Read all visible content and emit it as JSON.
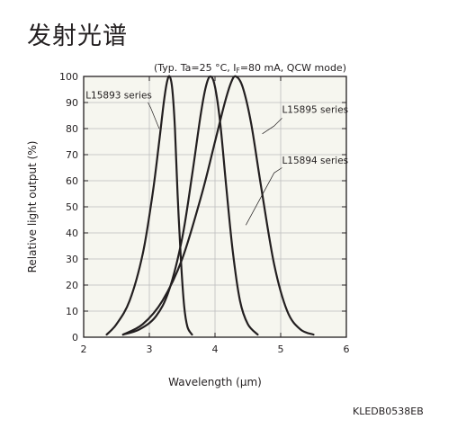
{
  "page": {
    "title": "发射光谱",
    "figure_code": "KLEDB0538EB"
  },
  "chart_data": {
    "type": "line",
    "subtitle": "(Typ. Ta=25 °C, IF=80 mA, QCW mode)",
    "subtitle_parts": {
      "pre": "(Typ. Ta=25 °C, I",
      "sub": "F",
      "post": "=80 mA, QCW mode)"
    },
    "xlabel": "Wavelength (μm)",
    "ylabel": "Relative light output (%)",
    "xlim": [
      2,
      6
    ],
    "ylim": [
      0,
      100
    ],
    "xticks": [
      2,
      3,
      4,
      5,
      6
    ],
    "yticks": [
      0,
      10,
      20,
      30,
      40,
      50,
      60,
      70,
      80,
      90,
      100
    ],
    "grid": true,
    "series": [
      {
        "name": "L15893 series",
        "points": [
          [
            2.35,
            1
          ],
          [
            2.5,
            5
          ],
          [
            2.7,
            14
          ],
          [
            2.9,
            32
          ],
          [
            3.05,
            55
          ],
          [
            3.15,
            75
          ],
          [
            3.22,
            90
          ],
          [
            3.27,
            98
          ],
          [
            3.31,
            100
          ],
          [
            3.35,
            95
          ],
          [
            3.39,
            80
          ],
          [
            3.43,
            55
          ],
          [
            3.48,
            30
          ],
          [
            3.53,
            12
          ],
          [
            3.58,
            4
          ],
          [
            3.65,
            1
          ]
        ]
      },
      {
        "name": "L15895 series",
        "points": [
          [
            2.6,
            1
          ],
          [
            2.85,
            3
          ],
          [
            3.1,
            8
          ],
          [
            3.3,
            18
          ],
          [
            3.5,
            38
          ],
          [
            3.65,
            62
          ],
          [
            3.78,
            85
          ],
          [
            3.86,
            96
          ],
          [
            3.93,
            100
          ],
          [
            4.0,
            96
          ],
          [
            4.08,
            82
          ],
          [
            4.17,
            58
          ],
          [
            4.27,
            33
          ],
          [
            4.38,
            14
          ],
          [
            4.5,
            5
          ],
          [
            4.65,
            1
          ]
        ]
      },
      {
        "name": "L15894 series",
        "points": [
          [
            2.6,
            1
          ],
          [
            2.9,
            5
          ],
          [
            3.2,
            14
          ],
          [
            3.5,
            30
          ],
          [
            3.8,
            55
          ],
          [
            4.0,
            75
          ],
          [
            4.15,
            90
          ],
          [
            4.25,
            98
          ],
          [
            4.32,
            100
          ],
          [
            4.42,
            96
          ],
          [
            4.55,
            82
          ],
          [
            4.7,
            58
          ],
          [
            4.9,
            28
          ],
          [
            5.1,
            10
          ],
          [
            5.3,
            3
          ],
          [
            5.5,
            1
          ]
        ]
      }
    ],
    "annotations": [
      {
        "text": "L15893 series",
        "label_at": [
          2.03,
          91.5
        ],
        "leader": [
          [
            2.98,
            90
          ],
          [
            3.02,
            88
          ],
          [
            3.15,
            80
          ]
        ]
      },
      {
        "text": "L15895 series",
        "label_at": [
          5.02,
          86
        ],
        "leader": [
          [
            5.02,
            84
          ],
          [
            4.9,
            81
          ],
          [
            4.72,
            78
          ]
        ]
      },
      {
        "text": "L15894 series",
        "label_at": [
          5.02,
          66.5
        ],
        "leader": [
          [
            5.02,
            65
          ],
          [
            4.9,
            63
          ],
          [
            4.47,
            43
          ]
        ]
      }
    ],
    "colors": {
      "frame": "#231f20",
      "plot_background": "#f6f6ef",
      "grid": "#bdbdbd",
      "line": "#231f20"
    }
  }
}
